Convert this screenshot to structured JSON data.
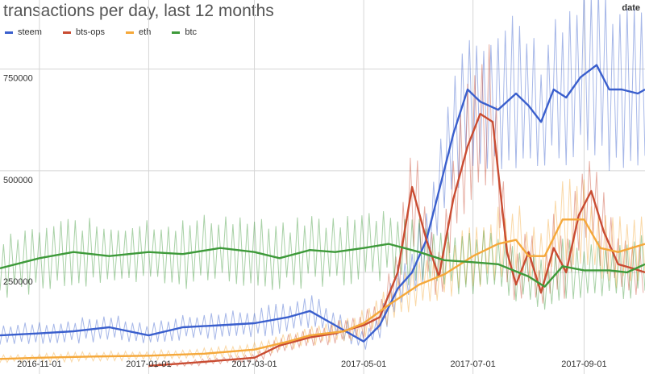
{
  "chart_data": {
    "type": "line",
    "title": "transactions per day, last 12 months",
    "xlabel": "date",
    "ylabel": "",
    "xlim": [
      "2016-10-10",
      "2017-10-05"
    ],
    "ylim": [
      0,
      920000
    ],
    "y_ticks": [
      250000,
      500000,
      750000
    ],
    "y_tick_labels": [
      "250000",
      "500000",
      "750000"
    ],
    "x_ticks": [
      "2016-11-01",
      "2017-01-01",
      "2017-03-01",
      "2017-05-01",
      "2017-07-01",
      "2017-09-01"
    ],
    "x_tick_labels": [
      "2016-11-01",
      "2017-01-01",
      "2017-03-01",
      "2017-05-01",
      "2017-07-01",
      "2017-09-01"
    ],
    "grid": true,
    "legend_position": "top-left",
    "series": [
      {
        "name": "steem",
        "color": "#3a5fcd",
        "dates": [
          "2016-10-10",
          "2016-11-01",
          "2016-11-20",
          "2016-12-10",
          "2017-01-01",
          "2017-01-20",
          "2017-02-10",
          "2017-03-01",
          "2017-03-20",
          "2017-04-01",
          "2017-04-15",
          "2017-05-01",
          "2017-05-10",
          "2017-05-20",
          "2017-05-28",
          "2017-06-05",
          "2017-06-12",
          "2017-06-20",
          "2017-06-28",
          "2017-07-05",
          "2017-07-15",
          "2017-07-25",
          "2017-08-01",
          "2017-08-08",
          "2017-08-15",
          "2017-08-22",
          "2017-08-30",
          "2017-09-08",
          "2017-09-15",
          "2017-09-22",
          "2017-10-01",
          "2017-10-05"
        ],
        "values": [
          95000,
          100000,
          105000,
          115000,
          95000,
          115000,
          120000,
          125000,
          140000,
          155000,
          120000,
          80000,
          120000,
          210000,
          250000,
          330000,
          450000,
          590000,
          700000,
          670000,
          650000,
          690000,
          660000,
          620000,
          700000,
          680000,
          730000,
          760000,
          700000,
          700000,
          690000,
          700000
        ]
      },
      {
        "name": "bts-ops",
        "color": "#c94c32",
        "dates": [
          "2017-01-01",
          "2017-02-01",
          "2017-03-01",
          "2017-03-15",
          "2017-04-01",
          "2017-04-15",
          "2017-05-01",
          "2017-05-10",
          "2017-05-20",
          "2017-05-28",
          "2017-06-05",
          "2017-06-12",
          "2017-06-20",
          "2017-06-28",
          "2017-07-05",
          "2017-07-12",
          "2017-07-20",
          "2017-07-25",
          "2017-08-01",
          "2017-08-08",
          "2017-08-15",
          "2017-08-22",
          "2017-08-29",
          "2017-09-05",
          "2017-09-12",
          "2017-09-20",
          "2017-09-28",
          "2017-10-05"
        ],
        "values": [
          20000,
          30000,
          40000,
          70000,
          90000,
          100000,
          120000,
          140000,
          250000,
          460000,
          330000,
          240000,
          430000,
          560000,
          640000,
          620000,
          300000,
          220000,
          300000,
          200000,
          310000,
          250000,
          390000,
          450000,
          350000,
          270000,
          260000,
          250000
        ]
      },
      {
        "name": "eth",
        "color": "#f5a83a",
        "dates": [
          "2016-10-10",
          "2016-11-01",
          "2016-12-01",
          "2017-01-01",
          "2017-02-01",
          "2017-03-01",
          "2017-03-20",
          "2017-04-01",
          "2017-04-20",
          "2017-05-01",
          "2017-05-15",
          "2017-06-01",
          "2017-06-15",
          "2017-07-01",
          "2017-07-15",
          "2017-07-25",
          "2017-08-01",
          "2017-08-10",
          "2017-08-20",
          "2017-09-01",
          "2017-09-10",
          "2017-09-20",
          "2017-10-05"
        ],
        "values": [
          37000,
          40000,
          43000,
          45000,
          50000,
          60000,
          80000,
          95000,
          105000,
          125000,
          170000,
          220000,
          245000,
          290000,
          320000,
          330000,
          290000,
          290000,
          380000,
          380000,
          310000,
          300000,
          320000
        ]
      },
      {
        "name": "btc",
        "color": "#3e9a3a",
        "dates": [
          "2016-10-10",
          "2016-11-01",
          "2016-11-20",
          "2016-12-10",
          "2017-01-01",
          "2017-01-20",
          "2017-02-10",
          "2017-03-01",
          "2017-03-15",
          "2017-04-01",
          "2017-04-15",
          "2017-05-01",
          "2017-05-15",
          "2017-06-01",
          "2017-06-15",
          "2017-07-01",
          "2017-07-15",
          "2017-08-01",
          "2017-08-10",
          "2017-08-20",
          "2017-09-01",
          "2017-09-15",
          "2017-09-25",
          "2017-10-05"
        ],
        "values": [
          260000,
          285000,
          300000,
          290000,
          300000,
          295000,
          310000,
          300000,
          285000,
          305000,
          300000,
          310000,
          320000,
          300000,
          280000,
          275000,
          270000,
          240000,
          215000,
          265000,
          255000,
          255000,
          250000,
          270000
        ]
      }
    ]
  }
}
